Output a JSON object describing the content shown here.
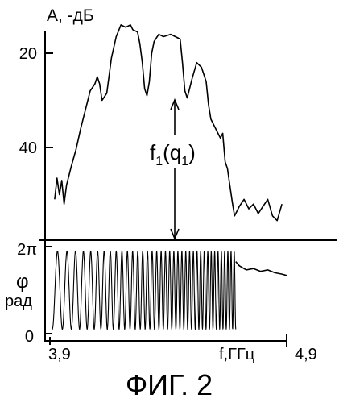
{
  "caption": "ФИГ. 2",
  "chart_data": [
    {
      "type": "line",
      "panel": "amplitude",
      "ylabel": "A, -дБ",
      "yticks": [
        {
          "value": 20,
          "label": "20"
        },
        {
          "value": 40,
          "label": "40"
        }
      ],
      "ylim": [
        56,
        12
      ],
      "xlim": [
        3.9,
        4.9
      ],
      "annotation": "f1(q1)",
      "annotation_x": 4.31,
      "series": [
        {
          "x": [
            3.92,
            3.93,
            3.94,
            3.95,
            3.96,
            3.97,
            3.99,
            4.01,
            4.03,
            4.05,
            4.07,
            4.09,
            4.1,
            4.11,
            4.12,
            4.14,
            4.16,
            4.18,
            4.2,
            4.22,
            4.24,
            4.25,
            4.27,
            4.28,
            4.29,
            4.3,
            4.31,
            4.32,
            4.33,
            4.34,
            4.36,
            4.38,
            4.41,
            4.43,
            4.45,
            4.46,
            4.47,
            4.48,
            4.5,
            4.52,
            4.54,
            4.56,
            4.57,
            4.58,
            4.6,
            4.62,
            4.63,
            4.64,
            4.65,
            4.66,
            4.67,
            4.68,
            4.7,
            4.72,
            4.74,
            4.76,
            4.78,
            4.8,
            4.82,
            4.84,
            4.86,
            4.88
          ],
          "y": [
            51.0,
            46.5,
            50.0,
            47.0,
            52.0,
            48.0,
            44.0,
            40.5,
            36.0,
            32.0,
            28.0,
            26.5,
            25.0,
            26.5,
            30.0,
            28.5,
            21.0,
            16.5,
            14.0,
            14.5,
            14.0,
            15.0,
            15.5,
            18.0,
            22.0,
            27.5,
            29.0,
            26.0,
            20.0,
            17.5,
            16.0,
            16.5,
            16.0,
            16.5,
            17.0,
            22.0,
            28.0,
            29.5,
            25.5,
            22.0,
            23.0,
            26.0,
            31.0,
            34.0,
            36.0,
            38.0,
            37.0,
            43.0,
            44.5,
            48.0,
            51.5,
            54.5,
            52.5,
            51.0,
            53.0,
            52.0,
            54.0,
            52.5,
            51.0,
            54.5,
            55.5,
            52.0
          ]
        }
      ]
    },
    {
      "type": "line",
      "panel": "phase",
      "ylabel_symbol": "φ",
      "ylabel_unit": "рад",
      "yticks": [
        {
          "value": 6.2832,
          "label": "2π"
        },
        {
          "value": 0,
          "label": "0"
        }
      ],
      "ylim": [
        0,
        6.2832
      ],
      "xticks": [
        {
          "value": 3.9,
          "label": "3,9"
        },
        {
          "value": 4.9,
          "label": "4,9"
        }
      ],
      "xlabel": "f,ГГц",
      "xlim": [
        3.9,
        4.9
      ],
      "series": [
        {
          "form": "wrapped phase oscillating between 0 and 2π",
          "x_start": 3.91,
          "x_oscillation_end": 4.685,
          "cycles": 38,
          "tail": {
            "x": [
              4.685,
              4.7,
              4.73,
              4.76,
              4.79,
              4.82,
              4.85,
              4.88,
              4.9
            ],
            "y": [
              5.2,
              4.9,
              4.6,
              4.7,
              4.5,
              4.6,
              4.4,
              4.3,
              4.2
            ]
          }
        }
      ]
    }
  ]
}
